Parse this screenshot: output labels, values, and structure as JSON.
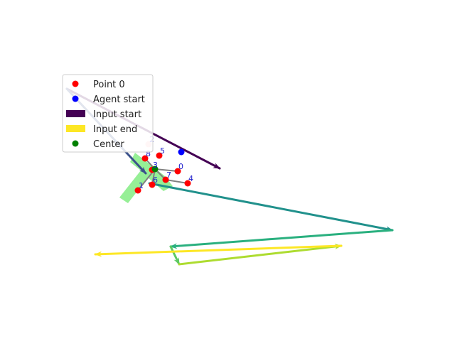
{
  "chart_data": {
    "type": "scatter",
    "axes_visible": false,
    "xlim": [
      0,
      640
    ],
    "ylim": [
      0,
      480
    ],
    "shaded_region": {
      "color": "#90ee90",
      "polygon": [
        [
          183,
          228
        ],
        [
          190,
          215
        ],
        [
          232,
          248
        ],
        [
          243,
          262
        ],
        [
          230,
          269
        ],
        [
          208,
          250
        ],
        [
          180,
          286
        ],
        [
          168,
          278
        ],
        [
          198,
          240
        ]
      ]
    },
    "connections": {
      "color": "#808080",
      "pairs": [
        [
          9,
          6
        ],
        [
          9,
          7
        ],
        [
          7,
          4
        ],
        [
          9,
          1
        ],
        [
          9,
          8
        ],
        [
          9,
          3
        ],
        [
          9,
          0
        ]
      ]
    },
    "points": [
      {
        "label": "0",
        "x": 250,
        "y": 241
      },
      {
        "label": "1",
        "x": 194,
        "y": 268
      },
      {
        "label": "2",
        "x": 209,
        "y": 203
      },
      {
        "label": "3",
        "x": 214,
        "y": 239
      },
      {
        "label": "4",
        "x": 264,
        "y": 258
      },
      {
        "label": "5",
        "x": 224,
        "y": 219
      },
      {
        "label": "6",
        "x": 214,
        "y": 260
      },
      {
        "label": "7",
        "x": 233,
        "y": 253
      },
      {
        "label": "8",
        "x": 204,
        "y": 223
      }
    ],
    "point_color": "#ff0000",
    "agent_start": {
      "x": 255,
      "y": 214,
      "color": "#0000ff"
    },
    "center": {
      "x": 218,
      "y": 238,
      "color": "#008000"
    },
    "trajectory": {
      "segments": [
        {
          "from": [
            94,
            125
          ],
          "to": [
            309,
            237
          ],
          "color": "#440154"
        },
        {
          "from": [
            94,
            125
          ],
          "to": [
            205,
            244
          ],
          "color": "#3b528b"
        },
        {
          "from": [
            210,
            258
          ],
          "to": [
            552,
            324
          ],
          "color": "#21918c"
        },
        {
          "from": [
            552,
            324
          ],
          "to": [
            240,
            347
          ],
          "color": "#2ab07f"
        },
        {
          "from": [
            240,
            347
          ],
          "to": [
            252,
            372
          ],
          "color": "#5ec962"
        },
        {
          "from": [
            252,
            372
          ],
          "to": [
            480,
            346
          ],
          "color": "#addc30"
        },
        {
          "from": [
            480,
            346
          ],
          "to": [
            134,
            358
          ],
          "color": "#fde725"
        }
      ]
    },
    "legend": {
      "placement": "upper-left",
      "entries": [
        {
          "label": "Point 0",
          "marker": "circle",
          "color": "#ff0000"
        },
        {
          "label": "Agent start",
          "marker": "circle",
          "color": "#0000ff"
        },
        {
          "label": "Input start",
          "marker": "rect",
          "color": "#440154"
        },
        {
          "label": "Input end",
          "marker": "rect",
          "color": "#fde725"
        },
        {
          "label": "Center",
          "marker": "circle",
          "color": "#008000"
        }
      ]
    }
  }
}
